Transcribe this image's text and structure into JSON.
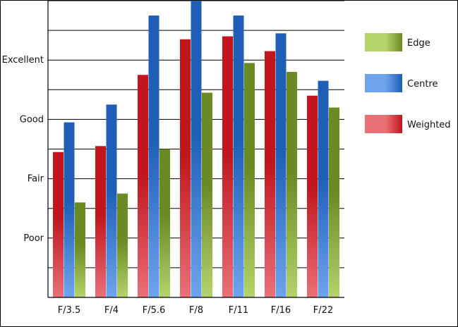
{
  "chart_data": {
    "type": "bar",
    "categories": [
      "F/3.5",
      "F/4",
      "F/5.6",
      "F/8",
      "F/11",
      "F/16",
      "F/22"
    ],
    "y_tick_labels": [
      "Poor",
      "Fair",
      "Good",
      "Excellent"
    ],
    "y_tick_values": [
      2,
      4,
      6,
      8
    ],
    "ylim": [
      0,
      10
    ],
    "grid": true,
    "legend_position": "right",
    "series": [
      {
        "name": "Weighted",
        "color": "#c0161c",
        "light_color": "#ea7078",
        "values": [
          4.9,
          5.1,
          7.5,
          8.7,
          8.8,
          8.3,
          6.8
        ]
      },
      {
        "name": "Centre",
        "color": "#1f5fb8",
        "light_color": "#6ea4ee",
        "values": [
          5.9,
          6.5,
          9.5,
          10.2,
          9.5,
          8.9,
          7.3
        ]
      },
      {
        "name": "Edge",
        "color": "#6a8a24",
        "light_color": "#b5d36b",
        "values": [
          3.2,
          3.5,
          5.0,
          6.9,
          7.9,
          7.6,
          6.4
        ]
      }
    ],
    "legend_order": [
      "Edge",
      "Centre",
      "Weighted"
    ],
    "title": "",
    "xlabel": "",
    "ylabel": ""
  }
}
